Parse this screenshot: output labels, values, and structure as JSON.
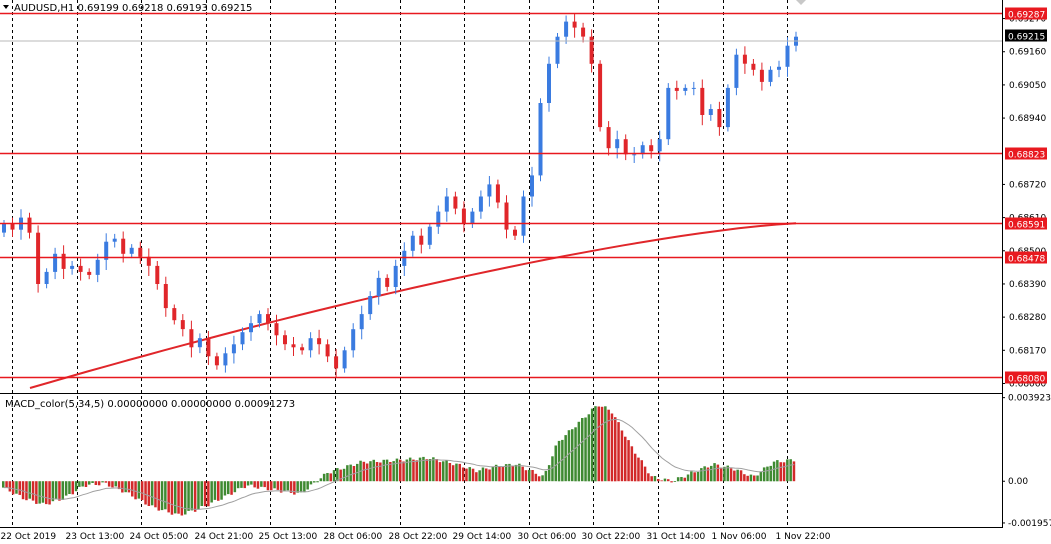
{
  "window": {
    "symbol_header": "AUDUSD,H1  0.69199 0.69218 0.69193 0.69215",
    "dropdown_icon": "triangle-down-icon"
  },
  "colors": {
    "bull": "#3a7be0",
    "bear": "#e0262a",
    "level_line": "#e8191f",
    "ma_line": "#e0262a",
    "macd_pos": "#3f8a32",
    "macd_neg": "#d22a2a",
    "signal": "#a0a0a0",
    "grid": "#000000",
    "price_tag_bg": "#e8191f",
    "current_tag_bg": "#000000"
  },
  "price_axis": {
    "ticks": [
      "0.69270",
      "0.69160",
      "0.69050",
      "0.68940",
      "0.68720",
      "0.68610",
      "0.68500",
      "0.68390",
      "0.68280",
      "0.68170",
      "0.68060"
    ],
    "range": [
      0.68045,
      0.69305
    ]
  },
  "levels": [
    {
      "price": 0.69287,
      "label": "0.69287"
    },
    {
      "price": 0.68823,
      "label": "0.68823"
    },
    {
      "price": 0.68591,
      "label": "0.68591"
    },
    {
      "price": 0.68478,
      "label": "0.68478"
    },
    {
      "price": 0.6808,
      "label": "0.68080"
    }
  ],
  "current_price": {
    "price": 0.69215,
    "label": "0.69215"
  },
  "time_axis": [
    "22 Oct 2019",
    "23 Oct 13:00",
    "24 Oct 05:00",
    "24 Oct 21:00",
    "25 Oct 13:00",
    "28 Oct 06:00",
    "28 Oct 22:00",
    "29 Oct 14:00",
    "30 Oct 06:00",
    "30 Oct 22:00",
    "31 Oct 14:00",
    "1 Nov 06:00",
    "1 Nov 22:00"
  ],
  "macd": {
    "title": "MACD_color(5,34,5) 0.00000000 0.00000000 0.00091273",
    "axis_ticks": [
      "0.0039230",
      "0.00",
      "-0.001957"
    ],
    "range": [
      -0.0021,
      0.004
    ]
  },
  "chart_data": [
    {
      "type": "candlestick",
      "title": "AUDUSD,H1",
      "timeframe": "H1",
      "ohlc_header": {
        "open": 0.69199,
        "high": 0.69218,
        "low": 0.69193,
        "close": 0.69215
      },
      "x_tick_labels": [
        "22 Oct 2019",
        "23 Oct 13:00",
        "24 Oct 05:00",
        "24 Oct 21:00",
        "25 Oct 13:00",
        "28 Oct 06:00",
        "28 Oct 22:00",
        "29 Oct 14:00",
        "30 Oct 06:00",
        "30 Oct 22:00",
        "31 Oct 14:00",
        "1 Nov 06:00",
        "1 Nov 22:00"
      ],
      "ylim": [
        0.68045,
        0.69305
      ],
      "grid": true,
      "horizontal_levels": [
        0.69287,
        0.68823,
        0.68591,
        0.68478,
        0.6808
      ],
      "close_path": [
        0.6859,
        0.6857,
        0.6861,
        0.6856,
        0.6839,
        0.6843,
        0.6849,
        0.6844,
        0.6845,
        0.6843,
        0.6842,
        0.6847,
        0.6853,
        0.6854,
        0.6849,
        0.6851,
        0.6848,
        0.6845,
        0.6839,
        0.6831,
        0.6827,
        0.6824,
        0.6818,
        0.6821,
        0.6815,
        0.6812,
        0.6816,
        0.6819,
        0.6823,
        0.6826,
        0.6829,
        0.6826,
        0.6822,
        0.6819,
        0.6818,
        0.6817,
        0.6821,
        0.6819,
        0.6815,
        0.6811,
        0.6817,
        0.6824,
        0.6829,
        0.6835,
        0.6841,
        0.6838,
        0.6845,
        0.685,
        0.6855,
        0.6852,
        0.6858,
        0.6863,
        0.6868,
        0.6864,
        0.6859,
        0.6863,
        0.6868,
        0.6872,
        0.6866,
        0.6857,
        0.6855,
        0.6868,
        0.6875,
        0.6899,
        0.6912,
        0.6921,
        0.6926,
        0.6924,
        0.6921,
        0.6912,
        0.6891,
        0.6884,
        0.6887,
        0.6882,
        0.6882,
        0.6885,
        0.6883,
        0.6887,
        0.6904,
        0.6903,
        0.6904,
        0.6904,
        0.6895,
        0.6897,
        0.6891,
        0.6904,
        0.6915,
        0.6912,
        0.691,
        0.6906,
        0.691,
        0.6911,
        0.6918,
        0.6921
      ],
      "moving_average": {
        "from": 0.68045,
        "to": 0.68591,
        "label": ""
      }
    },
    {
      "type": "histogram",
      "title": "MACD_color(5,34,5)",
      "values_header": [
        0.0,
        0.0,
        0.00091273
      ],
      "ylim": [
        -0.0021,
        0.004
      ],
      "ticks": [
        0.003923,
        0.0,
        -0.001957
      ],
      "profile": [
        [
          0,
          -0.0003
        ],
        [
          6,
          -0.0008
        ],
        [
          12,
          -0.0011
        ],
        [
          18,
          -0.0008
        ],
        [
          24,
          -0.0002
        ],
        [
          30,
          -0.0001
        ],
        [
          36,
          -0.0005
        ],
        [
          44,
          -0.0012
        ],
        [
          52,
          -0.0016
        ],
        [
          58,
          -0.0013
        ],
        [
          66,
          -0.0007
        ],
        [
          72,
          -0.0002
        ],
        [
          80,
          -0.0004
        ],
        [
          88,
          -0.0006
        ],
        [
          96,
          0.0004
        ],
        [
          106,
          0.0009
        ],
        [
          118,
          0.001
        ],
        [
          126,
          0.0011
        ],
        [
          134,
          0.0008
        ],
        [
          140,
          0.0005
        ],
        [
          146,
          0.0007
        ],
        [
          152,
          0.0008
        ],
        [
          160,
          0.0002
        ],
        [
          164,
          0.0018
        ],
        [
          170,
          0.0027
        ],
        [
          176,
          0.0036
        ],
        [
          180,
          0.0033
        ],
        [
          186,
          0.0016
        ],
        [
          192,
          0.0002
        ],
        [
          198,
          0.0
        ],
        [
          204,
          0.0004
        ],
        [
          210,
          0.0008
        ],
        [
          216,
          0.0006
        ],
        [
          222,
          0.0002
        ],
        [
          228,
          0.0009
        ],
        [
          234,
          0.001
        ]
      ]
    }
  ]
}
